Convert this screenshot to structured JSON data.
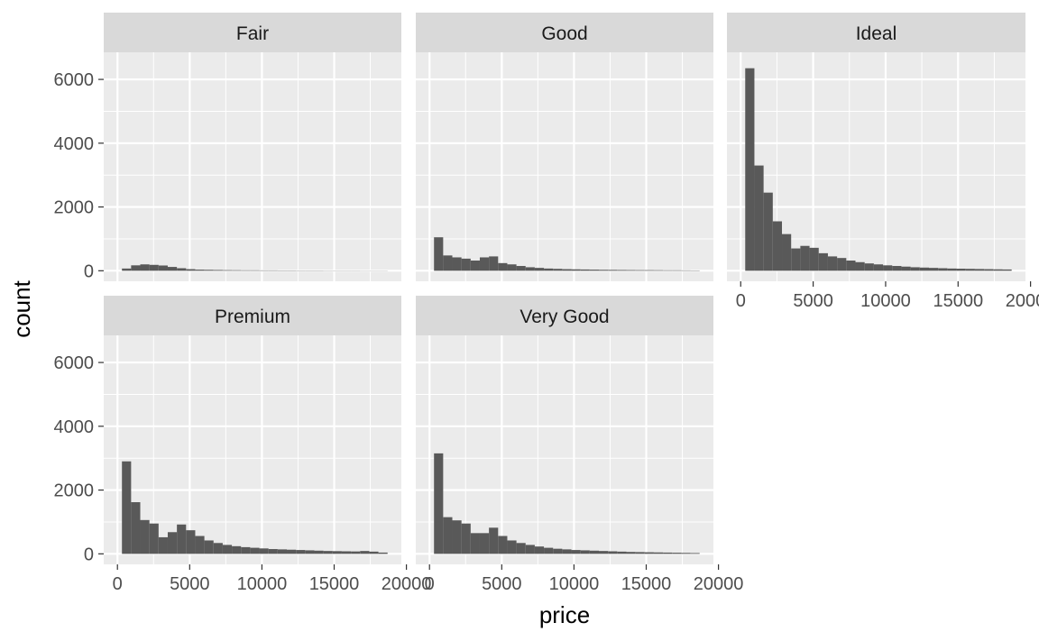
{
  "chart_data": {
    "type": "bar",
    "subtype": "faceted-histogram",
    "xlabel": "price",
    "ylabel": "count",
    "xlim": [
      0,
      20000
    ],
    "ylim": [
      0,
      6500
    ],
    "x_ticks": [
      0,
      5000,
      10000,
      15000,
      20000
    ],
    "x_tick_labels": [
      "0",
      "5000",
      "10000",
      "15000",
      "20000"
    ],
    "y_ticks": [
      0,
      2000,
      4000,
      6000
    ],
    "y_tick_labels": [
      "0",
      "2000",
      "4000",
      "6000"
    ],
    "grid": true,
    "bins": {
      "start": 311,
      "width": 634,
      "count": 29
    },
    "facets": [
      {
        "name": "Fair",
        "values": [
          70,
          170,
          200,
          185,
          165,
          120,
          80,
          50,
          35,
          30,
          25,
          20,
          18,
          15,
          15,
          12,
          12,
          10,
          10,
          8,
          8,
          8,
          6,
          6,
          6,
          6,
          5,
          5,
          5
        ]
      },
      {
        "name": "Good",
        "values": [
          1050,
          480,
          420,
          380,
          320,
          420,
          450,
          240,
          200,
          150,
          110,
          90,
          70,
          60,
          50,
          45,
          40,
          35,
          30,
          28,
          25,
          22,
          20,
          20,
          18,
          15,
          15,
          12,
          10
        ]
      },
      {
        "name": "Ideal",
        "values": [
          6350,
          3300,
          2450,
          1550,
          1150,
          700,
          780,
          720,
          550,
          450,
          400,
          320,
          270,
          230,
          200,
          170,
          150,
          130,
          110,
          100,
          90,
          80,
          70,
          65,
          60,
          55,
          50,
          45,
          40
        ]
      },
      {
        "name": "Premium",
        "values": [
          2900,
          1620,
          1060,
          950,
          520,
          680,
          920,
          740,
          560,
          420,
          340,
          280,
          240,
          210,
          190,
          170,
          150,
          140,
          130,
          120,
          110,
          100,
          90,
          85,
          80,
          75,
          90,
          70,
          40
        ]
      },
      {
        "name": "Very Good",
        "values": [
          3150,
          1150,
          1050,
          950,
          650,
          650,
          820,
          560,
          420,
          340,
          280,
          230,
          190,
          160,
          140,
          120,
          110,
          100,
          90,
          80,
          70,
          60,
          55,
          50,
          45,
          40,
          35,
          30,
          25
        ]
      }
    ]
  },
  "colors": {
    "panel_bg": "#ebebeb",
    "strip_bg": "#d9d9d9",
    "grid_major": "#ffffff",
    "bar_fill": "#595959",
    "tick_text": "#4d4d4d",
    "axis_title": "#000000"
  }
}
